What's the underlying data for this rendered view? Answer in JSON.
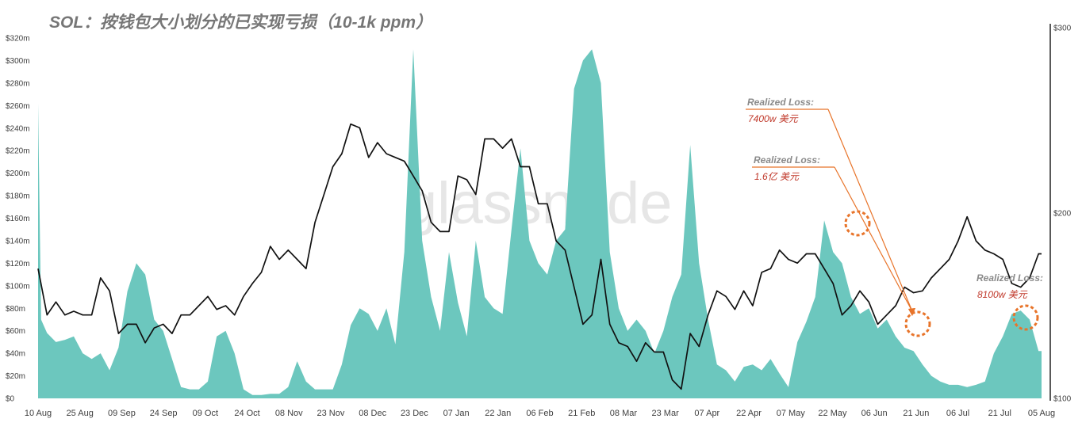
{
  "title": "SOL：按钱包大小划分的已实现亏损（10-1k  ppm）",
  "watermark": "glassnode",
  "colors": {
    "loss_area": "#6cc7be",
    "price_line": "#111111",
    "annotation": "#e8742a",
    "annotation_value": "#c0392b"
  },
  "chart_data": {
    "type": "area",
    "title": "SOL：按钱包大小划分的已实现亏损（10-1k  ppm）",
    "x_tick_labels": [
      "10 Aug",
      "25 Aug",
      "09 Sep",
      "24 Sep",
      "09 Oct",
      "24 Oct",
      "08 Nov",
      "23 Nov",
      "08 Dec",
      "23 Dec",
      "07 Jan",
      "22 Jan",
      "06 Feb",
      "21 Feb",
      "08 Mar",
      "23 Mar",
      "07 Apr",
      "22 Apr",
      "07 May",
      "22 May",
      "06 Jun",
      "21 Jun",
      "06 Jul",
      "21 Jul",
      "05 Aug"
    ],
    "y_left": {
      "ticks": [
        "$0",
        "$20m",
        "$40m",
        "$60m",
        "$80m",
        "$100m",
        "$120m",
        "$140m",
        "$160m",
        "$180m",
        "$200m",
        "$220m",
        "$240m",
        "$260m",
        "$280m",
        "$300m",
        "$320m"
      ],
      "range": [
        0,
        320
      ]
    },
    "y_right": {
      "ticks": [
        "$100",
        "$200",
        "$300"
      ],
      "range": [
        100,
        300
      ]
    },
    "series": [
      {
        "kind": "area",
        "axis": "left",
        "unit": "$m",
        "points": [
          [
            0,
            262
          ],
          [
            1,
            70
          ],
          [
            3,
            58
          ],
          [
            6,
            50
          ],
          [
            9,
            52
          ],
          [
            12,
            55
          ],
          [
            15,
            40
          ],
          [
            18,
            35
          ],
          [
            21,
            40
          ],
          [
            24,
            25
          ],
          [
            27,
            45
          ],
          [
            30,
            95
          ],
          [
            33,
            120
          ],
          [
            36,
            110
          ],
          [
            39,
            70
          ],
          [
            42,
            60
          ],
          [
            45,
            35
          ],
          [
            48,
            10
          ],
          [
            51,
            8
          ],
          [
            54,
            8
          ],
          [
            57,
            15
          ],
          [
            60,
            55
          ],
          [
            63,
            60
          ],
          [
            66,
            40
          ],
          [
            69,
            8
          ],
          [
            72,
            3
          ],
          [
            75,
            3
          ],
          [
            78,
            4
          ],
          [
            81,
            4
          ],
          [
            84,
            10
          ],
          [
            87,
            33
          ],
          [
            90,
            15
          ],
          [
            93,
            8
          ],
          [
            96,
            8
          ],
          [
            99,
            8
          ],
          [
            102,
            30
          ],
          [
            105,
            65
          ],
          [
            108,
            80
          ],
          [
            111,
            75
          ],
          [
            114,
            60
          ],
          [
            117,
            80
          ],
          [
            120,
            48
          ],
          [
            123,
            130
          ],
          [
            126,
            310
          ],
          [
            129,
            140
          ],
          [
            132,
            90
          ],
          [
            135,
            60
          ],
          [
            138,
            130
          ],
          [
            141,
            85
          ],
          [
            144,
            55
          ],
          [
            147,
            140
          ],
          [
            150,
            90
          ],
          [
            153,
            80
          ],
          [
            156,
            75
          ],
          [
            159,
            150
          ],
          [
            162,
            222
          ],
          [
            165,
            140
          ],
          [
            168,
            120
          ],
          [
            171,
            110
          ],
          [
            174,
            140
          ],
          [
            177,
            150
          ],
          [
            180,
            275
          ],
          [
            183,
            300
          ],
          [
            186,
            310
          ],
          [
            189,
            280
          ],
          [
            192,
            130
          ],
          [
            195,
            80
          ],
          [
            198,
            60
          ],
          [
            201,
            70
          ],
          [
            204,
            60
          ],
          [
            207,
            40
          ],
          [
            210,
            60
          ],
          [
            213,
            90
          ],
          [
            216,
            110
          ],
          [
            219,
            225
          ],
          [
            222,
            120
          ],
          [
            225,
            70
          ],
          [
            228,
            30
          ],
          [
            231,
            25
          ],
          [
            234,
            15
          ],
          [
            237,
            28
          ],
          [
            240,
            30
          ],
          [
            243,
            25
          ],
          [
            246,
            35
          ],
          [
            249,
            22
          ],
          [
            252,
            10
          ],
          [
            255,
            50
          ],
          [
            258,
            68
          ],
          [
            261,
            90
          ],
          [
            264,
            158
          ],
          [
            267,
            130
          ],
          [
            270,
            120
          ],
          [
            273,
            90
          ],
          [
            276,
            75
          ],
          [
            279,
            80
          ],
          [
            282,
            62
          ],
          [
            285,
            70
          ],
          [
            288,
            55
          ],
          [
            291,
            45
          ],
          [
            294,
            42
          ],
          [
            297,
            30
          ],
          [
            300,
            20
          ],
          [
            303,
            15
          ],
          [
            306,
            12
          ],
          [
            309,
            12
          ],
          [
            312,
            10
          ],
          [
            315,
            12
          ],
          [
            318,
            15
          ],
          [
            321,
            40
          ],
          [
            324,
            55
          ],
          [
            327,
            75
          ],
          [
            330,
            78
          ],
          [
            333,
            70
          ],
          [
            336,
            42
          ],
          [
            337,
            42
          ]
        ]
      },
      {
        "kind": "line",
        "axis": "right",
        "unit": "$",
        "points": [
          [
            0,
            170
          ],
          [
            3,
            145
          ],
          [
            6,
            152
          ],
          [
            9,
            145
          ],
          [
            12,
            147
          ],
          [
            15,
            145
          ],
          [
            18,
            145
          ],
          [
            21,
            165
          ],
          [
            24,
            158
          ],
          [
            27,
            135
          ],
          [
            30,
            140
          ],
          [
            33,
            140
          ],
          [
            36,
            130
          ],
          [
            39,
            138
          ],
          [
            42,
            140
          ],
          [
            45,
            135
          ],
          [
            48,
            145
          ],
          [
            51,
            145
          ],
          [
            54,
            150
          ],
          [
            57,
            155
          ],
          [
            60,
            148
          ],
          [
            63,
            150
          ],
          [
            66,
            145
          ],
          [
            69,
            155
          ],
          [
            72,
            162
          ],
          [
            75,
            168
          ],
          [
            78,
            182
          ],
          [
            81,
            175
          ],
          [
            84,
            180
          ],
          [
            87,
            175
          ],
          [
            90,
            170
          ],
          [
            93,
            195
          ],
          [
            96,
            210
          ],
          [
            99,
            225
          ],
          [
            102,
            232
          ],
          [
            105,
            248
          ],
          [
            108,
            246
          ],
          [
            111,
            230
          ],
          [
            114,
            238
          ],
          [
            117,
            232
          ],
          [
            120,
            230
          ],
          [
            123,
            228
          ],
          [
            126,
            220
          ],
          [
            129,
            212
          ],
          [
            132,
            195
          ],
          [
            135,
            190
          ],
          [
            138,
            190
          ],
          [
            141,
            220
          ],
          [
            144,
            218
          ],
          [
            147,
            210
          ],
          [
            150,
            240
          ],
          [
            153,
            240
          ],
          [
            156,
            235
          ],
          [
            159,
            240
          ],
          [
            162,
            225
          ],
          [
            165,
            225
          ],
          [
            168,
            205
          ],
          [
            171,
            205
          ],
          [
            174,
            185
          ],
          [
            177,
            180
          ],
          [
            180,
            160
          ],
          [
            183,
            140
          ],
          [
            186,
            145
          ],
          [
            189,
            175
          ],
          [
            192,
            140
          ],
          [
            195,
            130
          ],
          [
            198,
            128
          ],
          [
            201,
            120
          ],
          [
            204,
            130
          ],
          [
            207,
            125
          ],
          [
            210,
            125
          ],
          [
            213,
            110
          ],
          [
            216,
            105
          ],
          [
            219,
            135
          ],
          [
            222,
            128
          ],
          [
            225,
            145
          ],
          [
            228,
            158
          ],
          [
            231,
            155
          ],
          [
            234,
            148
          ],
          [
            237,
            158
          ],
          [
            240,
            150
          ],
          [
            243,
            168
          ],
          [
            246,
            170
          ],
          [
            249,
            180
          ],
          [
            252,
            175
          ],
          [
            255,
            173
          ],
          [
            258,
            178
          ],
          [
            261,
            178
          ],
          [
            264,
            170
          ],
          [
            267,
            162
          ],
          [
            270,
            145
          ],
          [
            273,
            150
          ],
          [
            276,
            158
          ],
          [
            279,
            152
          ],
          [
            282,
            140
          ],
          [
            285,
            145
          ],
          [
            288,
            150
          ],
          [
            291,
            160
          ],
          [
            294,
            157
          ],
          [
            297,
            158
          ],
          [
            300,
            165
          ],
          [
            303,
            170
          ],
          [
            306,
            175
          ],
          [
            309,
            185
          ],
          [
            312,
            198
          ],
          [
            315,
            185
          ],
          [
            318,
            180
          ],
          [
            321,
            178
          ],
          [
            324,
            175
          ],
          [
            327,
            162
          ],
          [
            330,
            160
          ],
          [
            333,
            165
          ],
          [
            336,
            178
          ],
          [
            337,
            178
          ]
        ]
      }
    ],
    "annotations": [
      {
        "label": "Realized Loss:",
        "value": "7400w 美元"
      },
      {
        "label": "Realized Loss:",
        "value": "1.6亿 美元"
      },
      {
        "label": "Realized Loss:",
        "value": "8100w 美元"
      }
    ]
  }
}
